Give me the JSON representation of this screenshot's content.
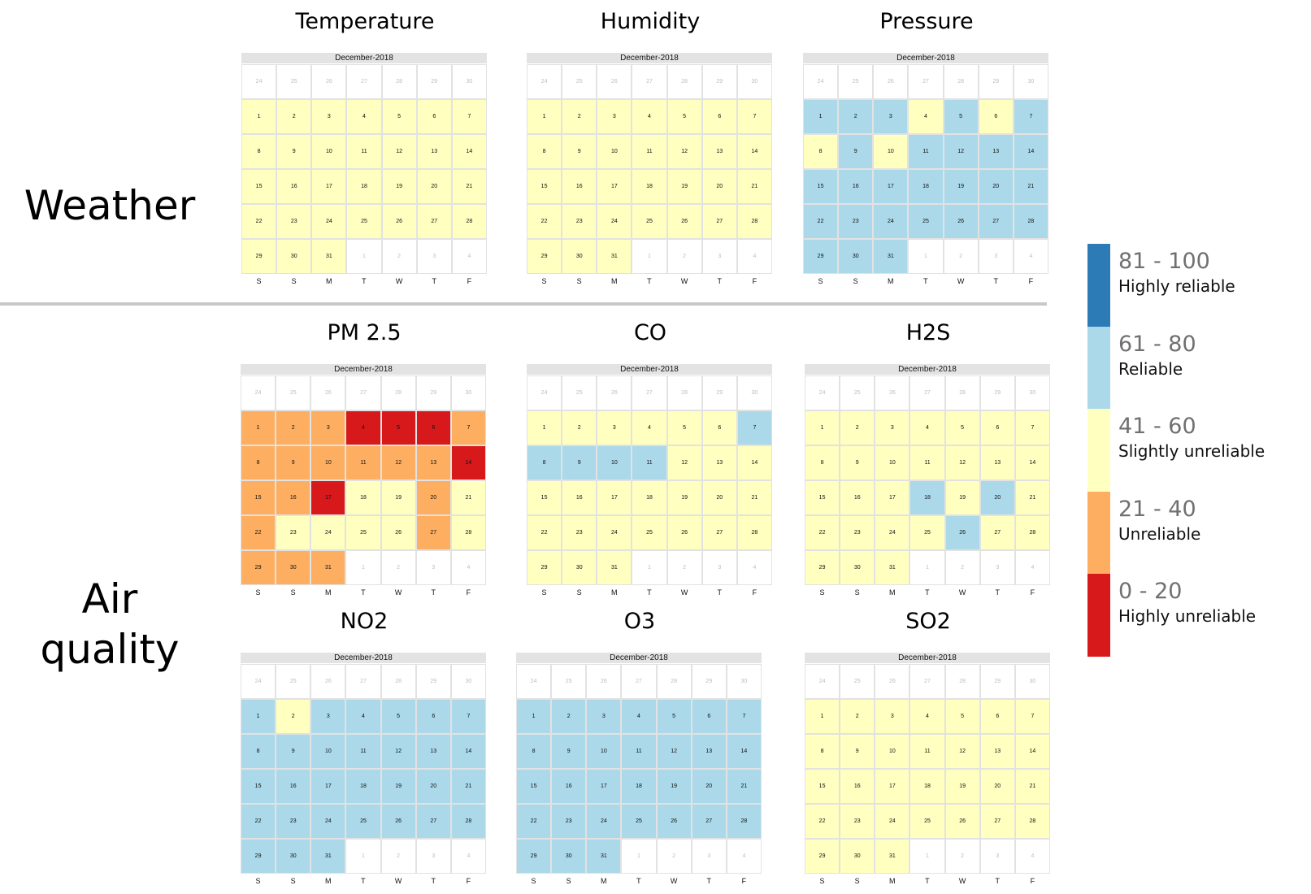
{
  "sections": {
    "weather_label": "Weather",
    "air_quality_label": "Air\nquality"
  },
  "calendar": {
    "month_label": "December-2018",
    "weekdays": [
      "S",
      "S",
      "M",
      "T",
      "W",
      "T",
      "F"
    ],
    "prev_month_days": [
      24,
      25,
      26,
      27,
      28,
      29,
      30
    ],
    "next_month_days": [
      1,
      2,
      3,
      4
    ],
    "days_in_month": 31
  },
  "colors": {
    "highly_reliable": "#2c7bb6",
    "reliable": "#abd9e9",
    "slightly_unreliable": "#ffffbf",
    "unreliable": "#fdae61",
    "highly_unreliable": "#d7191c"
  },
  "legend": [
    {
      "range": "81 - 100",
      "label": "Highly reliable",
      "key": "highly_reliable"
    },
    {
      "range": "61 - 80",
      "label": "Reliable",
      "key": "reliable"
    },
    {
      "range": "41 - 60",
      "label": "Slightly unreliable",
      "key": "slightly_unreliable"
    },
    {
      "range": "21 - 40",
      "label": "Unreliable",
      "key": "unreliable"
    },
    {
      "range": "0 - 20",
      "label": "Highly unreliable",
      "key": "highly_unreliable"
    }
  ],
  "chart_data": [
    {
      "type": "heatmap",
      "title": "Temperature",
      "section": "Weather",
      "levels": [
        "S",
        "S",
        "S",
        "S",
        "S",
        "S",
        "S",
        "S",
        "S",
        "S",
        "S",
        "S",
        "S",
        "S",
        "S",
        "S",
        "S",
        "S",
        "S",
        "S",
        "S",
        "S",
        "S",
        "S",
        "S",
        "S",
        "S",
        "S",
        "S",
        "S",
        "S"
      ]
    },
    {
      "type": "heatmap",
      "title": "Humidity",
      "section": "Weather",
      "levels": [
        "S",
        "S",
        "S",
        "S",
        "S",
        "S",
        "S",
        "S",
        "S",
        "S",
        "S",
        "S",
        "S",
        "S",
        "S",
        "S",
        "S",
        "S",
        "S",
        "S",
        "S",
        "S",
        "S",
        "S",
        "S",
        "S",
        "S",
        "S",
        "S",
        "S",
        "S"
      ]
    },
    {
      "type": "heatmap",
      "title": "Pressure",
      "section": "Weather",
      "levels": [
        "R",
        "R",
        "R",
        "S",
        "R",
        "S",
        "R",
        "S",
        "R",
        "S",
        "R",
        "R",
        "R",
        "R",
        "R",
        "R",
        "R",
        "R",
        "R",
        "R",
        "R",
        "R",
        "R",
        "R",
        "R",
        "R",
        "R",
        "R",
        "R",
        "R",
        "R"
      ]
    },
    {
      "type": "heatmap",
      "title": "PM 2.5",
      "section": "Air quality",
      "levels": [
        "U",
        "U",
        "U",
        "H",
        "H",
        "H",
        "U",
        "U",
        "U",
        "U",
        "U",
        "U",
        "U",
        "H",
        "U",
        "U",
        "H",
        "S",
        "S",
        "U",
        "S",
        "U",
        "S",
        "S",
        "S",
        "S",
        "U",
        "S",
        "U",
        "U",
        "U"
      ]
    },
    {
      "type": "heatmap",
      "title": "CO",
      "section": "Air quality",
      "levels": [
        "S",
        "S",
        "S",
        "S",
        "S",
        "S",
        "R",
        "R",
        "R",
        "R",
        "R",
        "S",
        "S",
        "S",
        "S",
        "S",
        "S",
        "S",
        "S",
        "S",
        "S",
        "S",
        "S",
        "S",
        "S",
        "S",
        "S",
        "S",
        "S",
        "S",
        "S"
      ]
    },
    {
      "type": "heatmap",
      "title": "H2S",
      "section": "Air quality",
      "levels": [
        "S",
        "S",
        "S",
        "S",
        "S",
        "S",
        "S",
        "S",
        "S",
        "S",
        "S",
        "S",
        "S",
        "S",
        "S",
        "S",
        "S",
        "R",
        "S",
        "R",
        "S",
        "S",
        "S",
        "S",
        "S",
        "R",
        "S",
        "S",
        "S",
        "S",
        "S"
      ]
    },
    {
      "type": "heatmap",
      "title": "NO2",
      "section": "Air quality",
      "levels": [
        "R",
        "S",
        "R",
        "R",
        "R",
        "R",
        "R",
        "R",
        "R",
        "R",
        "R",
        "R",
        "R",
        "R",
        "R",
        "R",
        "R",
        "R",
        "R",
        "R",
        "R",
        "R",
        "R",
        "R",
        "R",
        "R",
        "R",
        "R",
        "R",
        "R",
        "R"
      ]
    },
    {
      "type": "heatmap",
      "title": "O3",
      "section": "Air quality",
      "levels": [
        "R",
        "R",
        "R",
        "R",
        "R",
        "R",
        "R",
        "R",
        "R",
        "R",
        "R",
        "R",
        "R",
        "R",
        "R",
        "R",
        "R",
        "R",
        "R",
        "R",
        "R",
        "R",
        "R",
        "R",
        "R",
        "R",
        "R",
        "R",
        "R",
        "R",
        "R"
      ]
    },
    {
      "type": "heatmap",
      "title": "SO2",
      "section": "Air quality",
      "levels": [
        "S",
        "S",
        "S",
        "S",
        "S",
        "S",
        "S",
        "S",
        "S",
        "S",
        "S",
        "S",
        "S",
        "S",
        "S",
        "S",
        "S",
        "S",
        "S",
        "S",
        "S",
        "S",
        "S",
        "S",
        "S",
        "S",
        "S",
        "S",
        "S",
        "S",
        "S"
      ]
    }
  ]
}
